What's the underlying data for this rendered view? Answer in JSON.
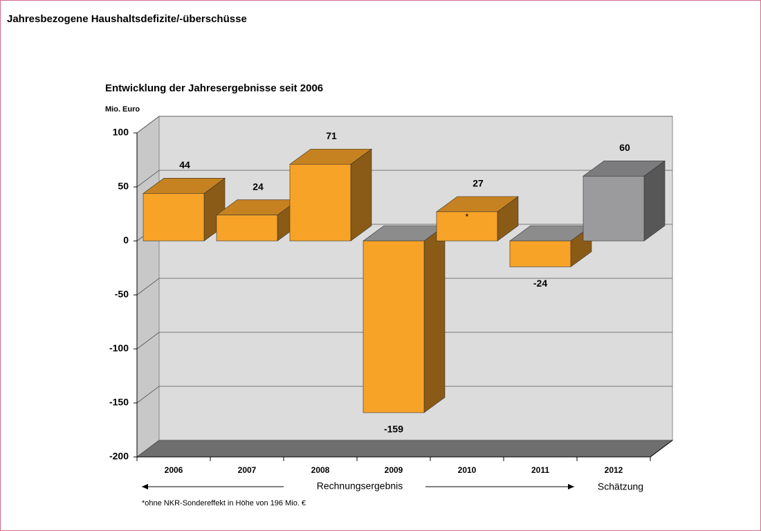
{
  "header": {
    "title": "Jahresbezogene Haushaltsdefizite/-überschüsse"
  },
  "chart_data": {
    "type": "bar3d",
    "title": "Entwicklung der Jahresergebnisse seit 2006",
    "y_axis_label": "Mio. Euro",
    "categories": [
      "2006",
      "2007",
      "2008",
      "2009",
      "2010",
      "2011",
      "2012"
    ],
    "values": [
      44,
      24,
      71,
      -159,
      27,
      -24,
      60
    ],
    "colors": [
      "#f7a328",
      "#f7a328",
      "#f7a328",
      "#f7a328",
      "#f7a328",
      "#f7a328",
      "#9b9b9e"
    ],
    "ylim": [
      -200,
      100
    ],
    "yticks": [
      -200,
      -150,
      -100,
      -50,
      0,
      50,
      100
    ],
    "grid": true,
    "bar_note": {
      "category_index": 4,
      "text": "*"
    },
    "annotations": {
      "actual": "Rechnungsergebnis",
      "estimate": "Schätzung"
    },
    "footnote": "*ohne NKR-Sondereffekt in Höhe von 196 Mio. €"
  }
}
